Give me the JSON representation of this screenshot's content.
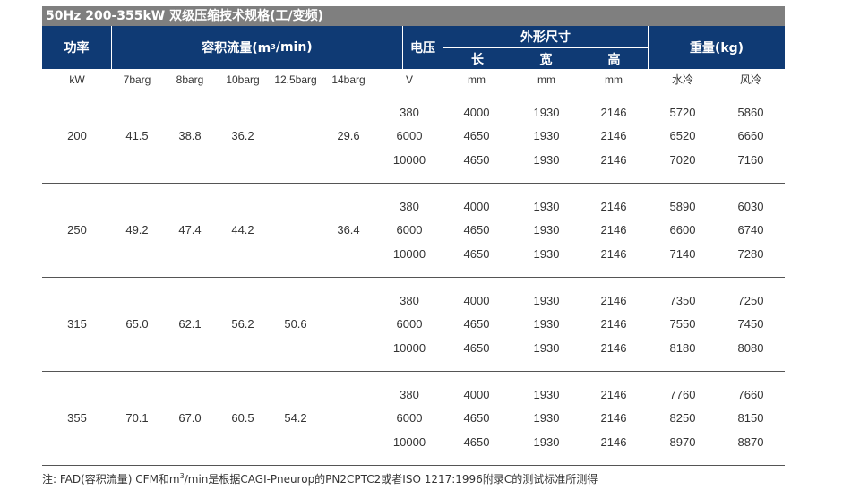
{
  "title": "50Hz 200-355kW 双级压缩技术规格(工/变频)",
  "header": {
    "power": "功率",
    "flow_pre": "容积流量(m",
    "flow_sup": "3",
    "flow_post": "/min)",
    "voltage": "电压",
    "dimensions": "外形尺寸",
    "length": "长",
    "width": "宽",
    "height": "高",
    "weight": "重量(kg)"
  },
  "units": [
    "kW",
    "7barg",
    "8barg",
    "10barg",
    "12.5barg",
    "14barg",
    "V",
    "mm",
    "mm",
    "mm",
    "水冷",
    "风冷"
  ],
  "groups": [
    {
      "power": "200",
      "f7": "41.5",
      "f8": "38.8",
      "f10": "36.2",
      "f125": "",
      "f14": "29.6",
      "rows": [
        {
          "v": "380",
          "l": "4000",
          "w": "1930",
          "h": "2146",
          "water": "5720",
          "air": "5860"
        },
        {
          "v": "6000",
          "l": "4650",
          "w": "1930",
          "h": "2146",
          "water": "6520",
          "air": "6660"
        },
        {
          "v": "10000",
          "l": "4650",
          "w": "1930",
          "h": "2146",
          "water": "7020",
          "air": "7160"
        }
      ]
    },
    {
      "power": "250",
      "f7": "49.2",
      "f8": "47.4",
      "f10": "44.2",
      "f125": "",
      "f14": "36.4",
      "rows": [
        {
          "v": "380",
          "l": "4000",
          "w": "1930",
          "h": "2146",
          "water": "5890",
          "air": "6030"
        },
        {
          "v": "6000",
          "l": "4650",
          "w": "1930",
          "h": "2146",
          "water": "6600",
          "air": "6740"
        },
        {
          "v": "10000",
          "l": "4650",
          "w": "1930",
          "h": "2146",
          "water": "7140",
          "air": "7280"
        }
      ]
    },
    {
      "power": "315",
      "f7": "65.0",
      "f8": "62.1",
      "f10": "56.2",
      "f125": "50.6",
      "f14": "",
      "rows": [
        {
          "v": "380",
          "l": "4000",
          "w": "1930",
          "h": "2146",
          "water": "7350",
          "air": "7250"
        },
        {
          "v": "6000",
          "l": "4650",
          "w": "1930",
          "h": "2146",
          "water": "7550",
          "air": "7450"
        },
        {
          "v": "10000",
          "l": "4650",
          "w": "1930",
          "h": "2146",
          "water": "8180",
          "air": "8080"
        }
      ]
    },
    {
      "power": "355",
      "f7": "70.1",
      "f8": "67.0",
      "f10": "60.5",
      "f125": "54.2",
      "f14": "",
      "rows": [
        {
          "v": "380",
          "l": "4000",
          "w": "1930",
          "h": "2146",
          "water": "7760",
          "air": "7660"
        },
        {
          "v": "6000",
          "l": "4650",
          "w": "1930",
          "h": "2146",
          "water": "8250",
          "air": "8150"
        },
        {
          "v": "10000",
          "l": "4650",
          "w": "1930",
          "h": "2146",
          "water": "8970",
          "air": "8870"
        }
      ]
    }
  ],
  "note": {
    "pre": "注: FAD(容积流量) CFM和m",
    "sup": "3",
    "post": "/min是根据CAGI-Pneurop的PN2CPTC2或者ISO 1217:1996附录C的测试标准所测得"
  }
}
